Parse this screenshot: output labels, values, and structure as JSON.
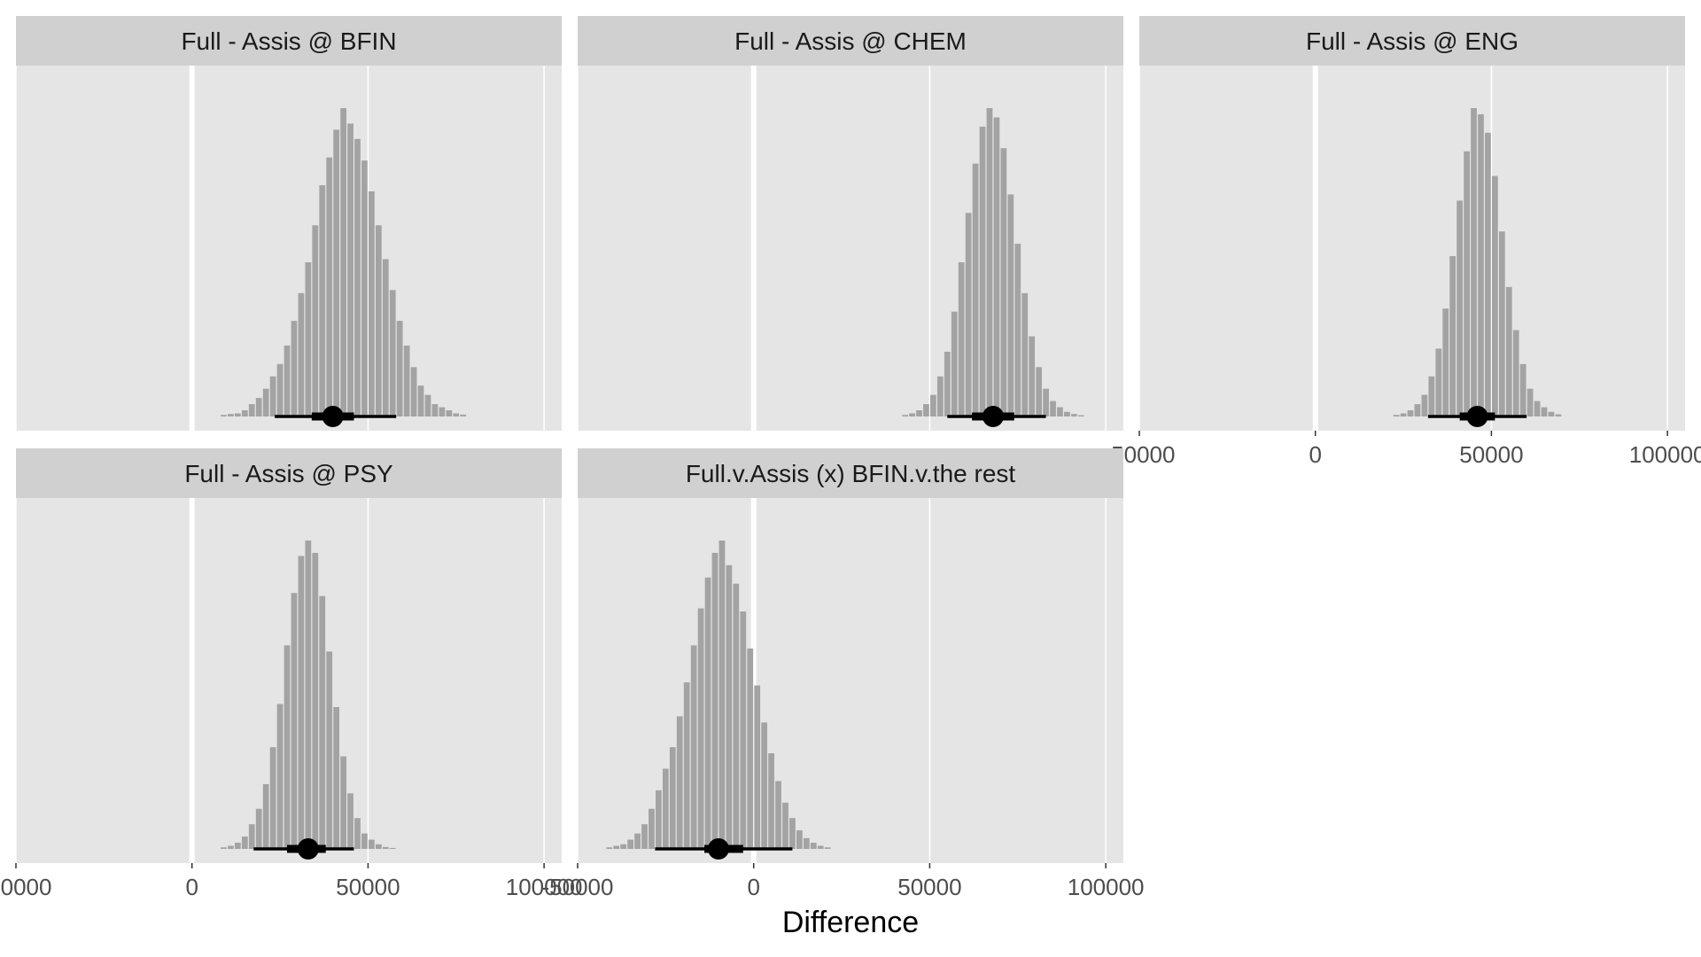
{
  "chart_data": {
    "type": "bar",
    "description_style": "faceted posterior histograms with point + interval",
    "xlabel": "Difference",
    "xlim": [
      -50000,
      105000
    ],
    "xticks": [
      -50000,
      0,
      50000,
      100000
    ],
    "xtick_labels": [
      "-50000",
      "0",
      "50000",
      "100000"
    ],
    "colors": {
      "panel_bg": "#e5e5e5",
      "strip_bg": "#d0d0d0",
      "bar_fill": "#a3a3a3",
      "zero_line": "#ffffff",
      "interval": "#000000"
    },
    "panels": [
      {
        "title": "Full - Assis @ BFIN",
        "median": 40000,
        "interval_66": [
          34000,
          46000
        ],
        "interval_95": [
          23500,
          58000
        ],
        "bins": {
          "start": 8000,
          "width": 2000,
          "values": [
            0.5,
            0.8,
            1,
            2,
            4,
            6,
            9,
            13,
            17,
            23,
            31,
            40,
            50,
            62,
            75,
            84,
            93,
            100,
            95,
            90,
            83,
            73,
            62,
            51,
            41,
            31,
            23,
            16,
            10,
            7,
            4,
            3,
            2,
            1,
            0.6
          ]
        }
      },
      {
        "title": "Full - Assis @ CHEM",
        "median": 68000,
        "interval_66": [
          62000,
          74000
        ],
        "interval_95": [
          55000,
          83000
        ],
        "bins": {
          "start": 42000,
          "width": 2000,
          "values": [
            0.5,
            1,
            2,
            4,
            7,
            13,
            21,
            34,
            50,
            66,
            82,
            94,
            100,
            97,
            87,
            72,
            56,
            40,
            26,
            16,
            9,
            5,
            3,
            1.5,
            0.8,
            0.4
          ]
        }
      },
      {
        "title": "Full - Assis @ ENG",
        "median": 46000,
        "interval_66": [
          41000,
          51000
        ],
        "interval_95": [
          32000,
          60000
        ],
        "bins": {
          "start": 22000,
          "width": 2000,
          "values": [
            0.5,
            1,
            2,
            4,
            7,
            13,
            22,
            35,
            52,
            70,
            86,
            100,
            98,
            92,
            78,
            60,
            42,
            28,
            17,
            9,
            5,
            3,
            1.5,
            0.7
          ]
        }
      },
      {
        "title": "Full - Assis @ PSY",
        "median": 33000,
        "interval_66": [
          27000,
          38000
        ],
        "interval_95": [
          17500,
          46000
        ],
        "bins": {
          "start": 8000,
          "width": 2000,
          "values": [
            0.5,
            1,
            2,
            4,
            8,
            13,
            21,
            33,
            47,
            66,
            83,
            95,
            100,
            96,
            82,
            64,
            46,
            30,
            18,
            10,
            5,
            3,
            1.5,
            0.6,
            0.3
          ]
        }
      },
      {
        "title": "Full.v.Assis (x) BFIN.v.the rest",
        "median": -10000,
        "interval_66": [
          -14000,
          -3000
        ],
        "interval_95": [
          -28000,
          11000
        ],
        "bins": {
          "start": -42000,
          "width": 2000,
          "values": [
            0.5,
            1,
            1.5,
            3,
            5,
            8,
            13,
            19,
            26,
            33,
            43,
            54,
            66,
            78,
            88,
            96,
            100,
            92,
            86,
            77,
            65,
            53,
            41,
            31,
            22,
            15,
            10,
            6,
            3.5,
            2,
            1,
            0.5
          ]
        }
      }
    ]
  }
}
